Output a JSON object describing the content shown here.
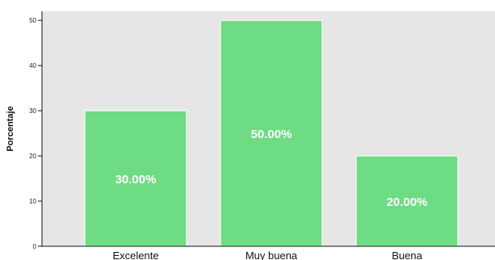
{
  "chart_data": {
    "type": "bar",
    "categories": [
      "Excelente",
      "Muy buena",
      "Buena"
    ],
    "values": [
      30,
      50,
      20
    ],
    "data_labels": [
      "30.00%",
      "50.00%",
      "20.00%"
    ],
    "title": "",
    "xlabel": "",
    "ylabel": "Porcentaje",
    "ylim": [
      0,
      52
    ],
    "yticks": [
      0,
      10,
      20,
      30,
      40,
      50
    ],
    "grid": false,
    "colors": {
      "bar": "#6edc82",
      "bar_edge": "#eaf8ea",
      "plot_background": "#e6e6e6",
      "axis": "#111111",
      "data_label": "#ffffff"
    }
  }
}
